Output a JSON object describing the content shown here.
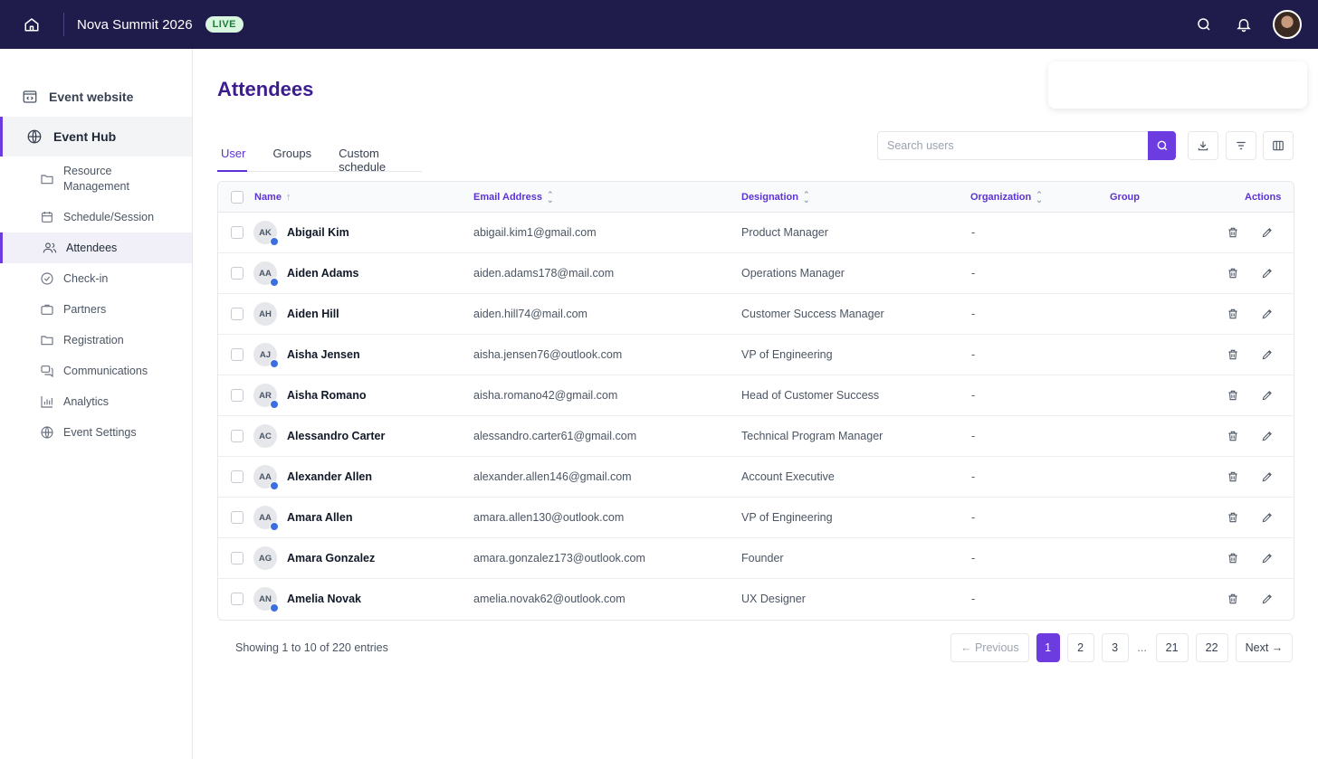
{
  "topbar": {
    "event_name": "Nova Summit 2026",
    "live_badge": "LIVE",
    "icons": [
      "home-icon",
      "search-icon",
      "bell-icon",
      "user-avatar"
    ]
  },
  "sidebar": {
    "event_website": "Event website",
    "event_hub": "Event Hub",
    "items": [
      {
        "label": "Resource Management",
        "icon": "folder-icon"
      },
      {
        "label": "Schedule/Session",
        "icon": "calendar-icon"
      },
      {
        "label": "Attendees",
        "icon": "users-icon",
        "active": true
      },
      {
        "label": "Check-in",
        "icon": "check-circle-icon"
      },
      {
        "label": "Partners",
        "icon": "briefcase-icon"
      },
      {
        "label": "Registration",
        "icon": "folder-icon"
      },
      {
        "label": "Communications",
        "icon": "chat-icon"
      },
      {
        "label": "Analytics",
        "icon": "bar-chart-icon"
      },
      {
        "label": "Event Settings",
        "icon": "globe-icon"
      }
    ]
  },
  "main": {
    "title": "Attendees",
    "tabs": [
      {
        "label": "User",
        "active": true
      },
      {
        "label": "Groups"
      },
      {
        "label": "Custom schedule"
      }
    ],
    "search": {
      "placeholder": "Search users"
    }
  },
  "table": {
    "headers": {
      "name": "Name",
      "email": "Email Address",
      "designation": "Designation",
      "organization": "Organization",
      "group": "Group",
      "actions": "Actions"
    },
    "rows": [
      {
        "initials": "AK",
        "name": "Abigail Kim",
        "email": "abigail.kim1@gmail.com",
        "designation": "Product Manager",
        "organization": "-",
        "online": true
      },
      {
        "initials": "AA",
        "name": "Aiden Adams",
        "email": "aiden.adams178@mail.com",
        "designation": "Operations Manager",
        "organization": "-",
        "online": true
      },
      {
        "initials": "AH",
        "name": "Aiden Hill",
        "email": "aiden.hill74@mail.com",
        "designation": "Customer Success Manager",
        "organization": "-",
        "online": false
      },
      {
        "initials": "AJ",
        "name": "Aisha Jensen",
        "email": "aisha.jensen76@outlook.com",
        "designation": "VP of Engineering",
        "organization": "-",
        "online": true
      },
      {
        "initials": "AR",
        "name": "Aisha Romano",
        "email": "aisha.romano42@gmail.com",
        "designation": "Head of Customer Success",
        "organization": "-",
        "online": true
      },
      {
        "initials": "AC",
        "name": "Alessandro Carter",
        "email": "alessandro.carter61@gmail.com",
        "designation": "Technical Program Manager",
        "organization": "-",
        "online": false
      },
      {
        "initials": "AA",
        "name": "Alexander Allen",
        "email": "alexander.allen146@gmail.com",
        "designation": "Account Executive",
        "organization": "-",
        "online": true
      },
      {
        "initials": "AA",
        "name": "Amara Allen",
        "email": "amara.allen130@outlook.com",
        "designation": "VP of Engineering",
        "organization": "-",
        "online": true
      },
      {
        "initials": "AG",
        "name": "Amara Gonzalez",
        "email": "amara.gonzalez173@outlook.com",
        "designation": "Founder",
        "organization": "-",
        "online": false
      },
      {
        "initials": "AN",
        "name": "Amelia Novak",
        "email": "amelia.novak62@outlook.com",
        "designation": "UX Designer",
        "organization": "-",
        "online": true
      }
    ]
  },
  "footer": {
    "showing": "Showing 1 to 10 of 220 entries",
    "previous": "← Previous",
    "next": "Next →",
    "pages": [
      "1",
      "2",
      "3",
      "...",
      "21",
      "22"
    ],
    "current_page": "1"
  },
  "colors": {
    "topbar": "#1f1b4b",
    "accent": "#6d3ce0",
    "title": "#3b1d8f",
    "live_bg": "#d7f5df",
    "online_dot": "#3b6fe0"
  }
}
